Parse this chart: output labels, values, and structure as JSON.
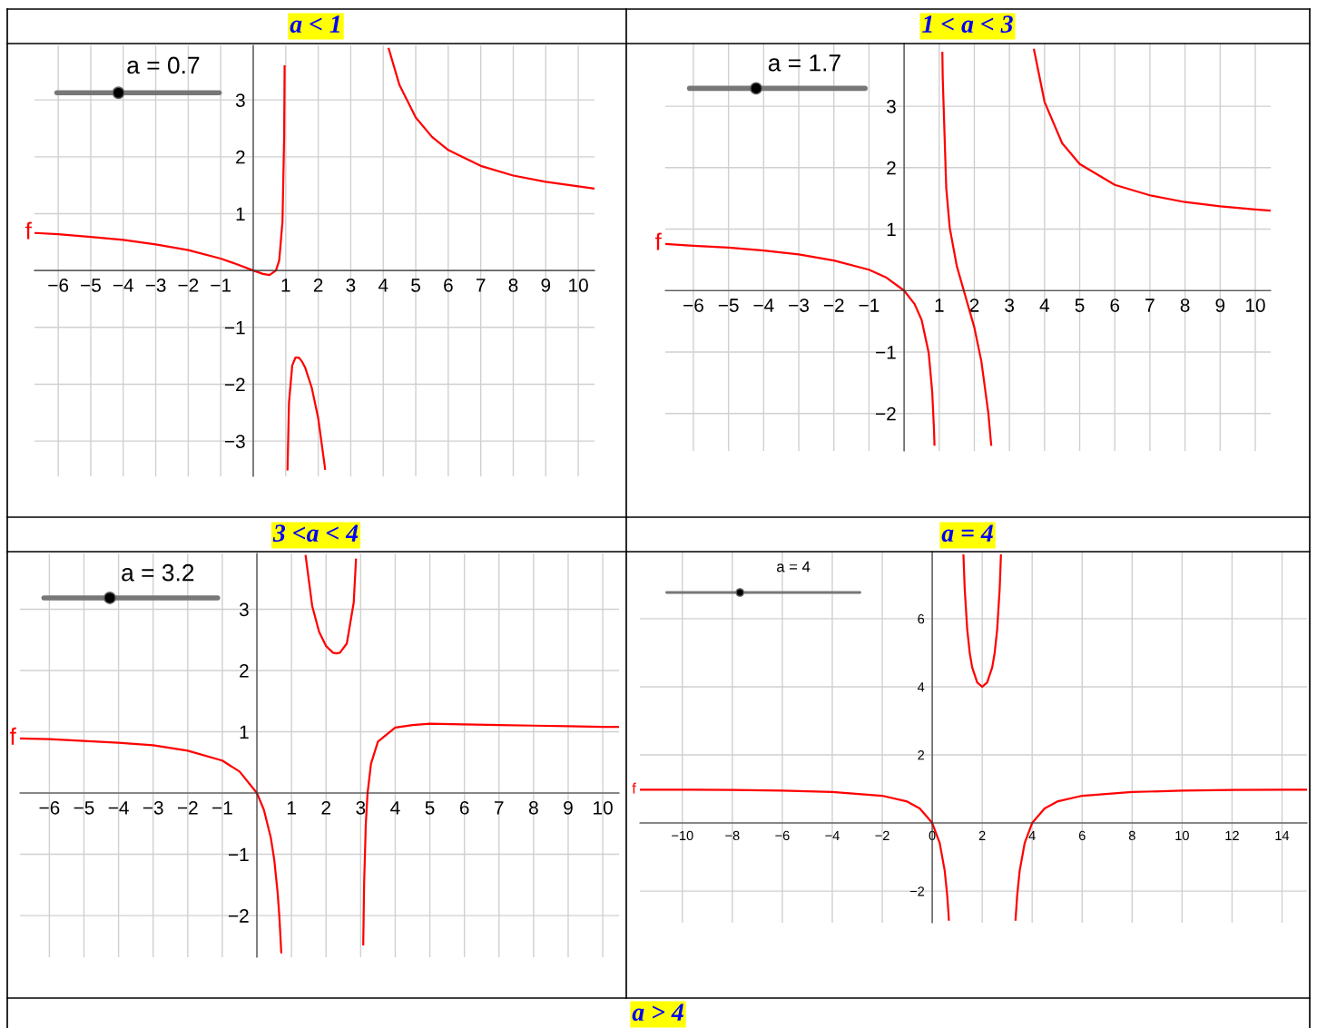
{
  "chart_data": [
    {
      "type": "line",
      "title": "a < 1",
      "annotations": [
        "a = 0.7"
      ],
      "grid": true,
      "xlim": [
        -6.73,
        10.5
      ],
      "ylim": [
        -3.62,
        3.96
      ],
      "xticks": [
        {
          "value": -6,
          "label": "−6"
        },
        {
          "value": -5,
          "label": "−5"
        },
        {
          "value": -4,
          "label": "−4"
        },
        {
          "value": -3,
          "label": "−3"
        },
        {
          "value": -2,
          "label": "−2"
        },
        {
          "value": -1,
          "label": "−1"
        },
        {
          "value": 0,
          "label": null
        },
        1,
        2,
        3,
        4,
        5,
        6,
        7,
        8,
        9,
        10
      ],
      "yticks": [
        {
          "value": -3,
          "label": "−3"
        },
        {
          "value": -2,
          "label": "−2"
        },
        {
          "value": -1,
          "label": "−1"
        },
        {
          "value": 0,
          "label": null
        },
        1,
        2,
        3
      ],
      "series": [
        {
          "name": "f",
          "color": "#ff0000",
          "x": [
            -6.7,
            -6,
            -5,
            -4,
            -3,
            -2,
            -1,
            -0.5,
            0,
            0.3,
            0.5,
            0.7,
            0.8,
            0.9,
            0.95,
            0.96,
            0.965,
            1,
            1.055,
            1.1,
            1.2,
            1.3,
            1.4,
            1.5,
            1.6,
            1.8,
            2.0,
            2.2,
            2.21,
            3,
            4.17,
            4.5,
            5,
            5.5,
            6,
            7,
            8,
            9,
            10,
            10.5
          ],
          "values": [
            0.66,
            0.64,
            0.59,
            0.54,
            0.46,
            0.36,
            0.21,
            0.11,
            0,
            -0.06,
            -0.08,
            0,
            0.18,
            0.86,
            2.32,
            3.06,
            3.59,
            null,
            -3.5,
            -2.32,
            -1.67,
            -1.53,
            -1.53,
            -1.6,
            -1.71,
            -2.06,
            -2.6,
            -3.44,
            -3.49,
            null,
            3.9,
            3.26,
            2.69,
            2.35,
            2.12,
            1.84,
            1.67,
            1.56,
            1.48,
            1.44
          ]
        }
      ]
    },
    {
      "type": "line",
      "title": "1 < a < 3",
      "annotations": [
        "a = 1.7"
      ],
      "grid": true,
      "xlim": [
        -6.8,
        10.44
      ],
      "ylim": [
        -2.61,
        4.02
      ],
      "xticks": [
        {
          "value": -6,
          "label": "−6"
        },
        {
          "value": -5,
          "label": "−5"
        },
        {
          "value": -4,
          "label": "−4"
        },
        {
          "value": -3,
          "label": "−3"
        },
        {
          "value": -2,
          "label": "−2"
        },
        {
          "value": -1,
          "label": "−1"
        },
        {
          "value": 0,
          "label": null
        },
        1,
        2,
        3,
        4,
        5,
        6,
        7,
        8,
        9,
        10
      ],
      "yticks": [
        {
          "value": -2,
          "label": "−2"
        },
        {
          "value": -1,
          "label": "−1"
        },
        {
          "value": 0,
          "label": null
        },
        1,
        2,
        3
      ],
      "series": [
        {
          "name": "f",
          "color": "#ff0000",
          "x": [
            -6.8,
            -6,
            -5,
            -4,
            -3,
            -2,
            -1,
            -0.5,
            0,
            0.3,
            0.5,
            0.7,
            0.8,
            0.85,
            0.865,
            1,
            1.09,
            1.1,
            1.2,
            1.3,
            1.5,
            1.7,
            2,
            2.2,
            2.4,
            2.48,
            3,
            3.7,
            4,
            4.5,
            5,
            6,
            7,
            8,
            9,
            10,
            10.44
          ],
          "values": [
            0.76,
            0.73,
            0.7,
            0.65,
            0.59,
            0.49,
            0.34,
            0.21,
            0,
            -0.22,
            -0.48,
            -1.01,
            -1.64,
            -2.24,
            -2.51,
            null,
            3.87,
            3.47,
            1.67,
            1.02,
            0.4,
            0,
            -0.6,
            -1.15,
            -2.0,
            -2.51,
            null,
            3.92,
            3.07,
            2.4,
            2.06,
            1.72,
            1.55,
            1.44,
            1.37,
            1.32,
            1.3
          ]
        }
      ]
    },
    {
      "type": "line",
      "title": "3 <a < 4",
      "annotations": [
        "a = 3.2"
      ],
      "grid": true,
      "xlim": [
        -6.85,
        10.47
      ],
      "ylim": [
        -2.68,
        3.91
      ],
      "xticks": [
        {
          "value": -6,
          "label": "−6"
        },
        {
          "value": -5,
          "label": "−5"
        },
        {
          "value": -4,
          "label": "−4"
        },
        {
          "value": -3,
          "label": "−3"
        },
        {
          "value": -2,
          "label": "−2"
        },
        {
          "value": -1,
          "label": "−1"
        },
        {
          "value": 0,
          "label": null
        },
        1,
        2,
        3,
        4,
        5,
        6,
        7,
        8,
        9,
        10
      ],
      "yticks": [
        {
          "value": -2,
          "label": "−2"
        },
        {
          "value": -1,
          "label": "−1"
        },
        {
          "value": 0,
          "label": null
        },
        1,
        2,
        3
      ],
      "series": [
        {
          "name": "f",
          "color": "#ff0000",
          "x": [
            -6.85,
            -6,
            -5,
            -4,
            -3,
            -2,
            -1,
            -0.5,
            0,
            0.2,
            0.4,
            0.5,
            0.6,
            0.65,
            0.705,
            1,
            1.41,
            1.6,
            1.8,
            2,
            2.2,
            2.3,
            2.4,
            2.6,
            2.8,
            2.865,
            3,
            3.075,
            3.1,
            3.15,
            3.2,
            3.3,
            3.5,
            4,
            4.5,
            5,
            6,
            7,
            8,
            9,
            10,
            10.47
          ],
          "values": [
            0.89,
            0.88,
            0.85,
            0.82,
            0.78,
            0.69,
            0.53,
            0.35,
            0,
            -0.27,
            -0.72,
            -1.08,
            -1.63,
            -2.02,
            -2.6,
            null,
            3.87,
            3.05,
            2.63,
            2.4,
            2.29,
            2.28,
            2.29,
            2.44,
            3.11,
            3.81,
            null,
            -2.47,
            -1.48,
            -0.49,
            0,
            0.48,
            0.84,
            1.07,
            1.11,
            1.13,
            1.12,
            1.11,
            1.1,
            1.09,
            1.08,
            1.08
          ]
        }
      ]
    },
    {
      "type": "line",
      "title": "a = 4",
      "annotations": [
        "a = 4"
      ],
      "grid": true,
      "xlim": [
        -11.7,
        15.0
      ],
      "ylim": [
        -2.93,
        7.97
      ],
      "xticks": [
        {
          "value": -10,
          "label": "−10"
        },
        {
          "value": -8,
          "label": "−8"
        },
        {
          "value": -6,
          "label": "−6"
        },
        {
          "value": -4,
          "label": "−4"
        },
        {
          "value": -2,
          "label": "−2"
        },
        0,
        2,
        4,
        6,
        8,
        10,
        12,
        14
      ],
      "yticks": [
        {
          "value": -2,
          "label": "−2"
        },
        {
          "value": 0,
          "label": null
        },
        2,
        4,
        6
      ],
      "series": [
        {
          "name": "f",
          "color": "#ff0000",
          "x": [
            -11.7,
            -10,
            -8,
            -6,
            -4,
            -2,
            -1,
            -0.5,
            0,
            0.3,
            0.5,
            0.6,
            0.65,
            0.665,
            1,
            1.25,
            1.3,
            1.4,
            1.5,
            1.6,
            1.8,
            2,
            2.2,
            2.4,
            2.5,
            2.6,
            2.7,
            2.75,
            3,
            3.335,
            3.4,
            3.5,
            3.7,
            4,
            4.5,
            5,
            6,
            8,
            10,
            12,
            14,
            15
          ],
          "values": [
            0.98,
            0.98,
            0.97,
            0.95,
            0.91,
            0.8,
            0.63,
            0.43,
            0,
            -0.59,
            -1.4,
            -2.13,
            -2.65,
            -2.84,
            null,
            7.86,
            6.88,
            5.69,
            5.0,
            4.57,
            4.13,
            4.0,
            4.13,
            4.57,
            5.0,
            5.69,
            6.88,
            7.86,
            null,
            -2.84,
            -2.13,
            -1.4,
            -0.59,
            0,
            0.43,
            0.63,
            0.8,
            0.91,
            0.95,
            0.97,
            0.98,
            0.98
          ]
        }
      ]
    },
    {
      "type": "other",
      "title": "a > 4"
    }
  ]
}
